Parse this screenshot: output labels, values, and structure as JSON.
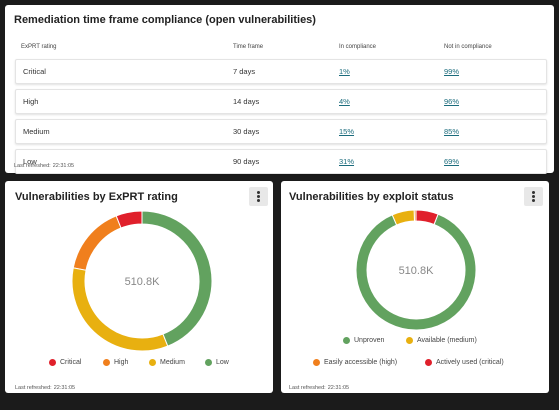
{
  "compliance": {
    "title": "Remediation time frame compliance (open vulnerabilities)",
    "headers": [
      "ExPRT rating",
      "Time frame",
      "In compliance",
      "Not in compliance"
    ],
    "rows": [
      {
        "rating": "Critical",
        "time_frame": "7 days",
        "in_compliance": "1%",
        "not_in_compliance": "99%"
      },
      {
        "rating": "High",
        "time_frame": "14 days",
        "in_compliance": "4%",
        "not_in_compliance": "96%"
      },
      {
        "rating": "Medium",
        "time_frame": "30 days",
        "in_compliance": "15%",
        "not_in_compliance": "85%"
      },
      {
        "rating": "Low",
        "time_frame": "90 days",
        "in_compliance": "31%",
        "not_in_compliance": "69%"
      }
    ],
    "last_refreshed_label": "Last refreshed:",
    "last_refreshed_time": "22:31:05"
  },
  "exprt_chart": {
    "title": "Vulnerabilities by ExPRT rating",
    "center_value": "510.8K",
    "last_refreshed_label": "Last refreshed:",
    "last_refreshed_time": "22:31:05",
    "menu_icon": "kebab-menu-icon"
  },
  "exploit_chart": {
    "title": "Vulnerabilities by exploit status",
    "center_value": "510.8K",
    "last_refreshed_label": "Last refreshed:",
    "last_refreshed_time": "22:31:05",
    "menu_icon": "kebab-menu-icon"
  },
  "chart_data": [
    {
      "type": "pie",
      "title": "Vulnerabilities by ExPRT rating",
      "total_label": "510.8K",
      "categories": [
        "Critical",
        "High",
        "Medium",
        "Low"
      ],
      "values": [
        6,
        16,
        34,
        44
      ],
      "colors": [
        "#e0202b",
        "#f07f1d",
        "#e8b010",
        "#62a25f"
      ],
      "legend": "bottom"
    },
    {
      "type": "pie",
      "title": "Vulnerabilities by exploit status",
      "total_label": "510.8K",
      "categories": [
        "Unproven",
        "Available (medium)",
        "Easily accessible (high)",
        "Actively used (critical)"
      ],
      "values": [
        87.5,
        6,
        0.5,
        6
      ],
      "colors": [
        "#62a25f",
        "#e8b010",
        "#f07f1d",
        "#e0202b"
      ],
      "legend": "bottom"
    }
  ]
}
